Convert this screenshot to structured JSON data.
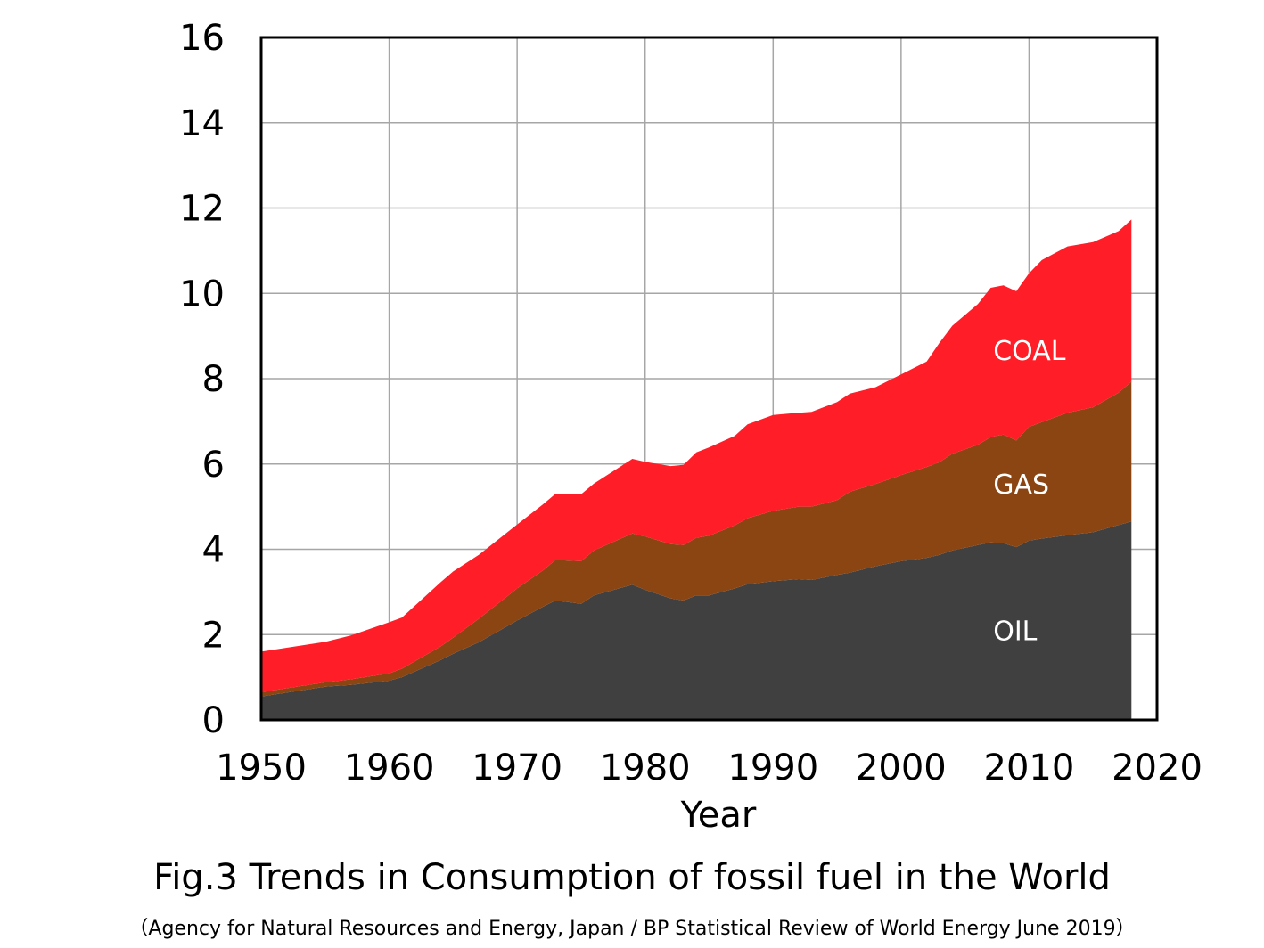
{
  "chart_data": {
    "type": "area",
    "stacked": true,
    "title": "Fig.3 Trends in Consumption of fossil fuel in the World",
    "subtitle": "（Agency for Natural Resources and Energy, Japan / BP Statistical Review of World Energy June 2019）",
    "xlabel": "Year",
    "ylabel": "",
    "xlim": [
      1950,
      2020
    ],
    "ylim": [
      0,
      16
    ],
    "xticks": [
      "1950",
      "1960",
      "1970",
      "1980",
      "1990",
      "2000",
      "2010",
      "2020"
    ],
    "yticks": [
      "0",
      "2",
      "4",
      "6",
      "8",
      "10",
      "12",
      "14",
      "16"
    ],
    "grid": true,
    "legend": "none",
    "x": [
      1950,
      1955,
      1957,
      1960,
      1961,
      1964,
      1965,
      1967,
      1970,
      1972,
      1973,
      1975,
      1976,
      1979,
      1980,
      1982,
      1983,
      1984,
      1985,
      1987,
      1988,
      1990,
      1992,
      1993,
      1995,
      1996,
      1998,
      2000,
      2002,
      2003,
      2004,
      2006,
      2007,
      2008,
      2009,
      2010,
      2011,
      2013,
      2015,
      2017,
      2018
    ],
    "series": [
      {
        "name": "OIL",
        "color": "#404040",
        "values": [
          0.55,
          0.78,
          0.82,
          0.92,
          1.0,
          1.4,
          1.55,
          1.82,
          2.33,
          2.65,
          2.8,
          2.72,
          2.92,
          3.17,
          3.05,
          2.85,
          2.8,
          2.92,
          2.92,
          3.08,
          3.18,
          3.25,
          3.3,
          3.28,
          3.4,
          3.45,
          3.6,
          3.72,
          3.8,
          3.87,
          3.97,
          4.1,
          4.16,
          4.14,
          4.05,
          4.2,
          4.25,
          4.33,
          4.4,
          4.57,
          4.65
        ]
      },
      {
        "name": "GAS",
        "color": "#8B4513",
        "values": [
          0.1,
          0.1,
          0.13,
          0.17,
          0.2,
          0.32,
          0.38,
          0.55,
          0.75,
          0.85,
          0.95,
          1.0,
          1.05,
          1.2,
          1.25,
          1.27,
          1.3,
          1.35,
          1.4,
          1.48,
          1.55,
          1.65,
          1.7,
          1.72,
          1.75,
          1.9,
          1.93,
          2.02,
          2.13,
          2.17,
          2.27,
          2.35,
          2.47,
          2.55,
          2.5,
          2.67,
          2.73,
          2.87,
          2.93,
          3.1,
          3.28
        ]
      },
      {
        "name": "COAL",
        "color": "#FF1E28",
        "values": [
          0.95,
          0.95,
          1.03,
          1.2,
          1.2,
          1.5,
          1.55,
          1.5,
          1.5,
          1.55,
          1.55,
          1.57,
          1.57,
          1.75,
          1.75,
          1.83,
          1.88,
          2.0,
          2.07,
          2.1,
          2.2,
          2.25,
          2.2,
          2.22,
          2.3,
          2.3,
          2.27,
          2.36,
          2.47,
          2.8,
          3.0,
          3.3,
          3.5,
          3.5,
          3.5,
          3.6,
          3.8,
          3.9,
          3.87,
          3.79,
          3.8
        ]
      }
    ]
  }
}
